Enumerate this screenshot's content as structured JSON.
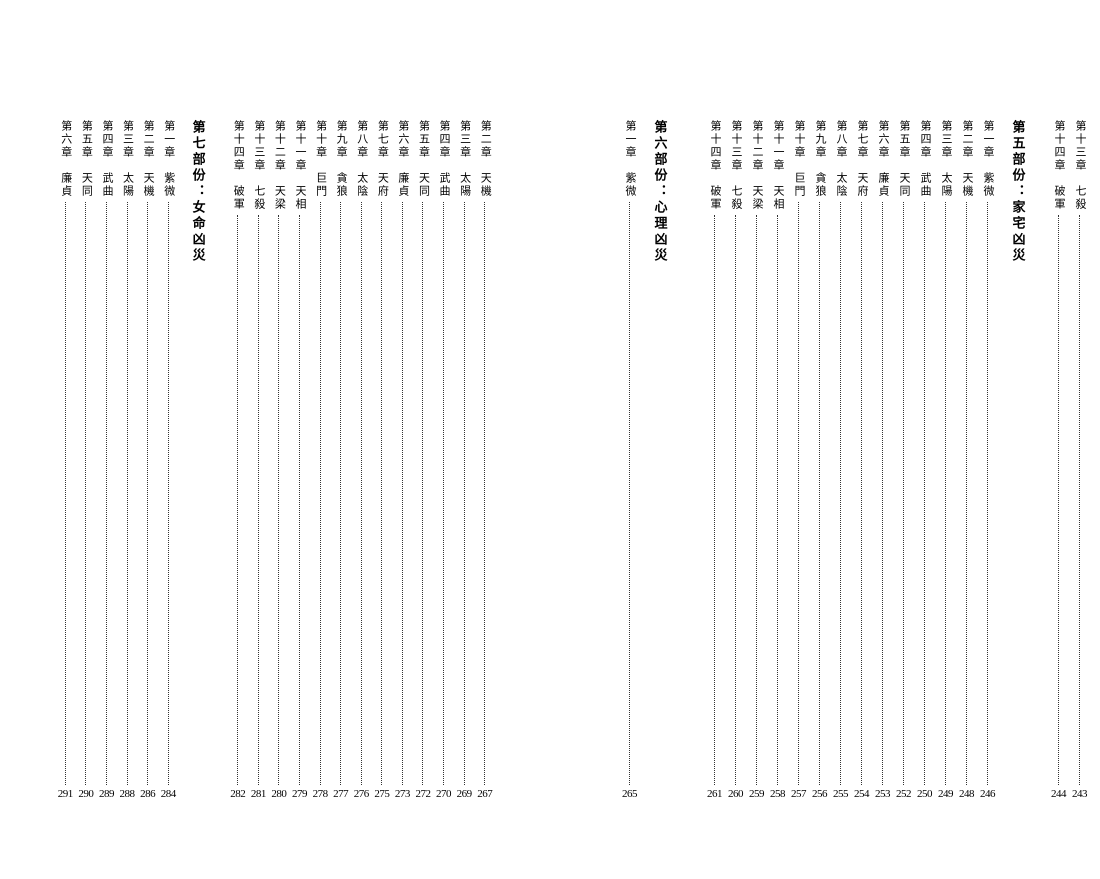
{
  "colors": {
    "text": "#000000",
    "bg": "#ffffff",
    "leader": "#333333"
  },
  "type": "table-of-contents",
  "layout": "vertical-rl-columns",
  "right_page": [
    {
      "kind": "entry",
      "label": "第十三章　七殺",
      "page": "243"
    },
    {
      "kind": "entry",
      "label": "第十四章　破軍",
      "page": "244"
    },
    {
      "kind": "spacer",
      "w": "med"
    },
    {
      "kind": "heading",
      "label": "第五部份：家宅凶災"
    },
    {
      "kind": "spacer",
      "w": "narrow"
    },
    {
      "kind": "entry",
      "label": "第一章　紫微",
      "page": "246"
    },
    {
      "kind": "entry",
      "label": "第二章　天機",
      "page": "248"
    },
    {
      "kind": "entry",
      "label": "第三章　太陽",
      "page": "249"
    },
    {
      "kind": "entry",
      "label": "第四章　武曲",
      "page": "250"
    },
    {
      "kind": "entry",
      "label": "第五章　天同",
      "page": "252"
    },
    {
      "kind": "entry",
      "label": "第六章　廉貞",
      "page": "253"
    },
    {
      "kind": "entry",
      "label": "第七章　天府",
      "page": "254"
    },
    {
      "kind": "entry",
      "label": "第八章　太陰",
      "page": "255"
    },
    {
      "kind": "entry",
      "label": "第九章　貪狼",
      "page": "256"
    },
    {
      "kind": "entry",
      "label": "第十章　巨門",
      "page": "257"
    },
    {
      "kind": "entry",
      "label": "第十一章　天相",
      "page": "258"
    },
    {
      "kind": "entry",
      "label": "第十二章　天梁",
      "page": "259"
    },
    {
      "kind": "entry",
      "label": "第十三章　七殺",
      "page": "260"
    },
    {
      "kind": "entry",
      "label": "第十四章　破軍",
      "page": "261"
    },
    {
      "kind": "spacer",
      "w": "wide"
    },
    {
      "kind": "heading",
      "label": "第六部份：心理凶災"
    },
    {
      "kind": "spacer",
      "w": "narrow"
    },
    {
      "kind": "entry",
      "label": "第一章　紫微",
      "page": "265"
    }
  ],
  "left_page": [
    {
      "kind": "entry",
      "label": "第二章　天機",
      "page": "267"
    },
    {
      "kind": "entry",
      "label": "第三章　太陽",
      "page": "269"
    },
    {
      "kind": "entry",
      "label": "第四章　武曲",
      "page": "270"
    },
    {
      "kind": "entry",
      "label": "第五章　天同",
      "page": "272"
    },
    {
      "kind": "entry",
      "label": "第六章　廉貞",
      "page": "273"
    },
    {
      "kind": "entry",
      "label": "第七章　天府",
      "page": "275"
    },
    {
      "kind": "entry",
      "label": "第八章　太陰",
      "page": "276"
    },
    {
      "kind": "entry",
      "label": "第九章　貪狼",
      "page": "277"
    },
    {
      "kind": "entry",
      "label": "第十章　巨門",
      "page": "278"
    },
    {
      "kind": "entry",
      "label": "第十一章　天相",
      "page": "279"
    },
    {
      "kind": "entry",
      "label": "第十二章　天梁",
      "page": "280"
    },
    {
      "kind": "entry",
      "label": "第十三章　七殺",
      "page": "281"
    },
    {
      "kind": "entry",
      "label": "第十四章　破軍",
      "page": "282"
    },
    {
      "kind": "spacer",
      "w": "med"
    },
    {
      "kind": "heading",
      "label": "第七部份：女命凶災"
    },
    {
      "kind": "spacer",
      "w": "narrow"
    },
    {
      "kind": "entry",
      "label": "第一章　紫微",
      "page": "284"
    },
    {
      "kind": "entry",
      "label": "第二章　天機",
      "page": "286"
    },
    {
      "kind": "entry",
      "label": "第三章　太陽",
      "page": "288"
    },
    {
      "kind": "entry",
      "label": "第四章　武曲",
      "page": "289"
    },
    {
      "kind": "entry",
      "label": "第五章　天同",
      "page": "290"
    },
    {
      "kind": "entry",
      "label": "第六章　廉貞",
      "page": "291"
    }
  ]
}
